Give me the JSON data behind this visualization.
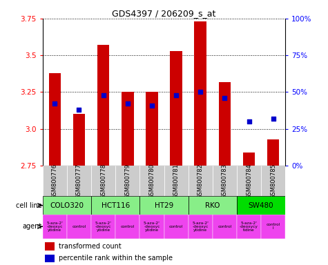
{
  "title": "GDS4397 / 206209_s_at",
  "samples": [
    "GSM800776",
    "GSM800777",
    "GSM800778",
    "GSM800779",
    "GSM800780",
    "GSM800781",
    "GSM800782",
    "GSM800783",
    "GSM800784",
    "GSM800785"
  ],
  "transformed_count": [
    3.38,
    3.1,
    3.57,
    3.25,
    3.25,
    3.53,
    3.73,
    3.32,
    2.84,
    2.93
  ],
  "percentile_rank": [
    42,
    38,
    48,
    42,
    41,
    48,
    50,
    46,
    30,
    32
  ],
  "ylim": [
    2.75,
    3.75
  ],
  "yticks": [
    2.75,
    3.0,
    3.25,
    3.5,
    3.75
  ],
  "y2lim": [
    0,
    100
  ],
  "y2ticks": [
    0,
    25,
    50,
    75,
    100
  ],
  "y2ticklabels": [
    "0%",
    "25%",
    "50%",
    "75%",
    "100%"
  ],
  "bar_color": "#cc0000",
  "dot_color": "#0000cc",
  "cell_line_spans": [
    {
      "name": "COLO320",
      "start": 0,
      "end": 2,
      "color": "#88ee88"
    },
    {
      "name": "HCT116",
      "start": 2,
      "end": 4,
      "color": "#88ee88"
    },
    {
      "name": "HT29",
      "start": 4,
      "end": 6,
      "color": "#88ee88"
    },
    {
      "name": "RKO",
      "start": 6,
      "end": 8,
      "color": "#88ee88"
    },
    {
      "name": "SW480",
      "start": 8,
      "end": 10,
      "color": "#00dd00"
    }
  ],
  "agent_labels": [
    "5-aza-2'\n-deoxyc\nytidine",
    "control",
    "5-aza-2'\n-deoxyc\nytidine",
    "control",
    "5-aza-2'\n-deoxyc\nytidine",
    "control",
    "5-aza-2'\n-deoxyc\nytidine",
    "control",
    "5-aza-2'\n-deoxycy\ntidine",
    "control\nl"
  ],
  "agent_color": "#ee44ee",
  "legend_red": "transformed count",
  "legend_blue": "percentile rank within the sample",
  "cell_line_label": "cell line",
  "agent_label": "agent",
  "bar_width": 0.5,
  "sample_bg": "#cccccc"
}
